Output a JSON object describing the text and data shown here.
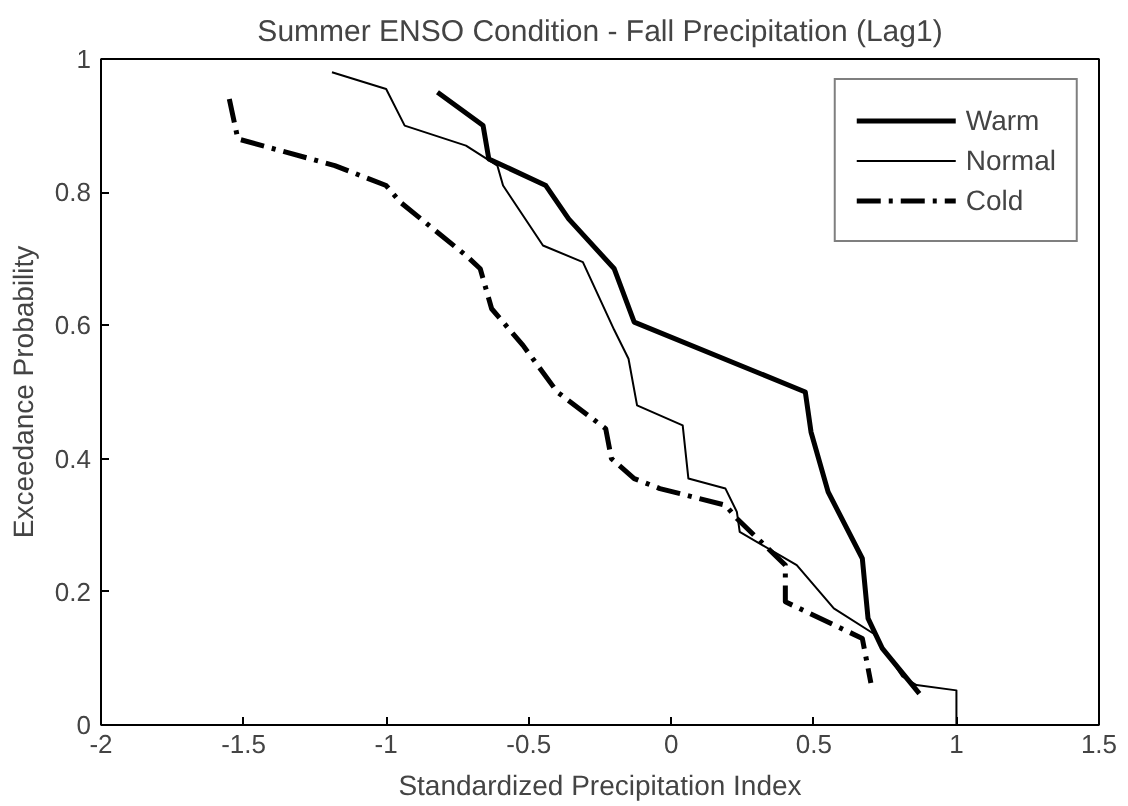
{
  "chart_data": {
    "type": "line",
    "title": "Summer ENSO Condition - Fall Precipitation (Lag1)",
    "xlabel": "Standardized Precipitation Index",
    "ylabel": "Exceedance Probability",
    "xlim": [
      -2,
      1.5
    ],
    "ylim": [
      0,
      1
    ],
    "xticks": [
      -2,
      -1.5,
      -1,
      -0.5,
      0,
      0.5,
      1,
      1.5
    ],
    "yticks": [
      0,
      0.2,
      0.4,
      0.6,
      0.8,
      1
    ],
    "grid": false,
    "legend": "top right",
    "marker": "none",
    "series": [
      {
        "name": "Warm",
        "color": "#000000",
        "line_style": "solid",
        "x": [
          -0.82,
          -0.66,
          -0.64,
          -0.44,
          -0.36,
          -0.2,
          -0.13,
          0.47,
          0.49,
          0.55,
          0.67,
          0.69,
          0.74,
          0.87
        ],
        "values": [
          0.95,
          0.9,
          0.85,
          0.81,
          0.76,
          0.685,
          0.605,
          0.5,
          0.44,
          0.35,
          0.25,
          0.16,
          0.115,
          0.047
        ]
      },
      {
        "name": "Normal",
        "color": "#000000",
        "line_style": "solid",
        "x": [
          -1.19,
          -1.0,
          -0.935,
          -0.72,
          -0.61,
          -0.59,
          -0.45,
          -0.31,
          -0.2,
          -0.15,
          -0.12,
          0.04,
          0.06,
          0.19,
          0.23,
          0.24,
          0.44,
          0.57,
          0.71,
          0.81,
          0.86,
          1.0,
          1.0
        ],
        "values": [
          0.98,
          0.955,
          0.9,
          0.87,
          0.84,
          0.81,
          0.72,
          0.695,
          0.593,
          0.55,
          0.48,
          0.45,
          0.37,
          0.355,
          0.32,
          0.29,
          0.24,
          0.175,
          0.137,
          0.073,
          0.06,
          0.052,
          0.0
        ]
      },
      {
        "name": "Cold",
        "color": "#000000",
        "line_style": "dashdot",
        "x": [
          -1.55,
          -1.52,
          -1.18,
          -1.0,
          -0.95,
          -0.72,
          -0.67,
          -0.63,
          -0.52,
          -0.4,
          -0.23,
          -0.21,
          -0.13,
          -0.04,
          0.19,
          0.23,
          0.4,
          0.4,
          0.67,
          0.7
        ],
        "values": [
          0.94,
          0.88,
          0.84,
          0.81,
          0.785,
          0.705,
          0.685,
          0.625,
          0.57,
          0.5,
          0.445,
          0.4,
          0.37,
          0.355,
          0.33,
          0.31,
          0.24,
          0.185,
          0.13,
          0.063
        ]
      }
    ]
  }
}
